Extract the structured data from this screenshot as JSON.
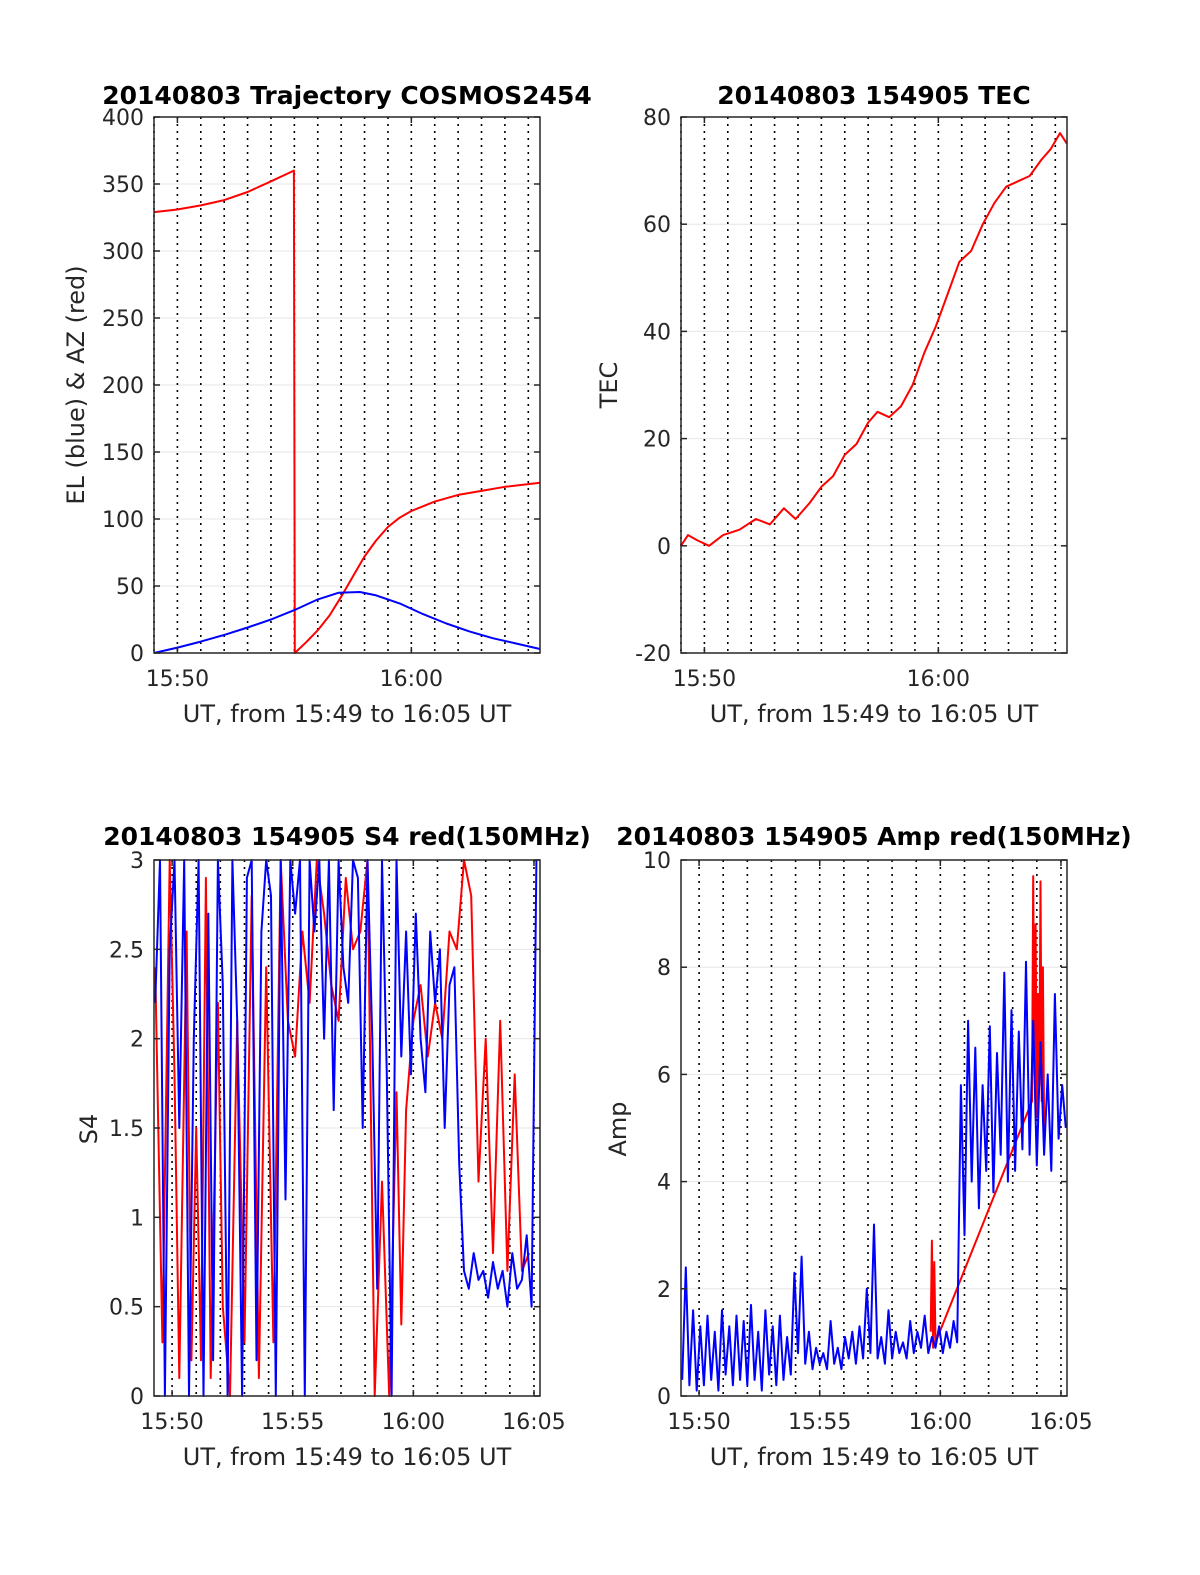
{
  "colors": {
    "el": "#0000ff",
    "az": "#ff0000",
    "tec": "#ff0000",
    "s4_red": "#ff0000",
    "s4_blue": "#0000ff",
    "amp_red": "#ff0000",
    "amp_blue": "#0000ff",
    "grid": "#000000",
    "axis": "#262626"
  },
  "chart_data": [
    {
      "id": "traj",
      "type": "line",
      "title": "20140803 Trajectory COSMOS2454",
      "xlabel": "UT, from 15:49 to 16:05 UT",
      "ylabel": "EL (blue) & AZ (red)",
      "xlim_min": [
        949,
        965.5
      ],
      "ylim": [
        0,
        400
      ],
      "yticks": [
        0,
        50,
        100,
        150,
        200,
        250,
        300,
        350,
        400
      ],
      "ytick_labels": [
        "0",
        "50",
        "100",
        "150",
        "200",
        "250",
        "300",
        "350",
        "400"
      ],
      "xticks_min": [
        950,
        960
      ],
      "xtick_labels": [
        "15:50",
        "16:00"
      ],
      "vgrid_min": [
        949,
        950,
        951,
        952,
        953,
        954,
        955,
        956,
        957,
        958,
        959,
        960,
        961,
        962,
        963,
        964,
        965
      ],
      "hgrid": true,
      "series": [
        {
          "name": "AZ",
          "color": "#ff0000",
          "x_min": [
            949,
            950,
            951,
            952,
            953,
            954,
            954.98,
            955.02,
            955.5,
            956,
            956.5,
            957,
            957.5,
            958,
            958.5,
            959,
            959.5,
            960,
            961,
            962,
            963,
            964,
            965.5
          ],
          "values": [
            329,
            331,
            334,
            338,
            344,
            352,
            360,
            0,
            8,
            17,
            28,
            42,
            57,
            72,
            84,
            94,
            101,
            106,
            113,
            118,
            121,
            124,
            127
          ]
        },
        {
          "name": "EL",
          "color": "#0000ff",
          "x_min": [
            949,
            950,
            951,
            952,
            953,
            954,
            955,
            956,
            956.9,
            957.8,
            958.5,
            959.5,
            960.5,
            961.5,
            962.5,
            963.5,
            964.5,
            965.5
          ],
          "values": [
            0,
            4,
            8.5,
            13.5,
            19,
            25,
            32,
            40,
            45,
            45.5,
            43,
            37,
            29,
            22,
            16,
            11,
            7,
            3
          ]
        }
      ]
    },
    {
      "id": "tec",
      "type": "line",
      "title": "20140803 154905 TEC",
      "xlabel": "UT, from 15:49 to 16:05 UT",
      "ylabel": "TEC",
      "xlim_min": [
        949,
        965.5
      ],
      "ylim": [
        -20,
        80
      ],
      "yticks": [
        -20,
        0,
        20,
        40,
        60,
        80
      ],
      "ytick_labels": [
        "-20",
        "0",
        "20",
        "40",
        "60",
        "80"
      ],
      "xticks_min": [
        950,
        960
      ],
      "xtick_labels": [
        "15:50",
        "16:00"
      ],
      "vgrid_min": [
        949,
        950,
        951,
        952,
        953,
        954,
        955,
        956,
        957,
        958,
        959,
        960,
        961,
        962,
        963,
        964,
        965
      ],
      "hgrid": true,
      "series": [
        {
          "name": "TEC",
          "color": "#ff0000",
          "x_min": [
            949,
            949.3,
            949.7,
            950.2,
            950.8,
            951.5,
            952.2,
            952.8,
            953.4,
            953.9,
            954.5,
            955.0,
            955.5,
            956.0,
            956.5,
            957.0,
            957.4,
            957.9,
            958.4,
            958.9,
            959.4,
            959.9,
            960.4,
            960.9,
            961.4,
            961.9,
            962.4,
            962.9,
            963.4,
            963.9,
            964.4,
            964.8,
            965.2,
            965.5
          ],
          "values": [
            0,
            2,
            1,
            0,
            2,
            3,
            5,
            4,
            7,
            5,
            8,
            11,
            13,
            17,
            19,
            23,
            25,
            24,
            26,
            30,
            36,
            41,
            47,
            53,
            55,
            60,
            64,
            67,
            68,
            69,
            72,
            74,
            77,
            75
          ]
        }
      ]
    },
    {
      "id": "s4",
      "type": "line",
      "title": "20140803 154905 S4 red(150MHz)",
      "xlabel": "UT, from 15:49 to 16:05 UT",
      "ylabel": "S4",
      "xlim_min": [
        949.25,
        965.25
      ],
      "ylim": [
        0,
        3
      ],
      "yticks": [
        0,
        0.5,
        1,
        1.5,
        2,
        2.5,
        3
      ],
      "ytick_labels": [
        "0",
        "0.5",
        "1",
        "1.5",
        "2",
        "2.5",
        "3"
      ],
      "xticks_min": [
        950,
        955,
        960,
        965
      ],
      "xtick_labels": [
        "15:50",
        "15:55",
        "16:00",
        "16:05"
      ],
      "vgrid_min": [
        950,
        951,
        952,
        953,
        954,
        955,
        956,
        957,
        958,
        959,
        960,
        961,
        962,
        963,
        964,
        965
      ],
      "hgrid": true,
      "series": [
        {
          "name": "S4 red",
          "color": "#ff0000",
          "x_min": [
            949.3,
            949.6,
            949.9,
            950.1,
            950.3,
            950.6,
            950.8,
            951.0,
            951.2,
            951.4,
            951.6,
            951.9,
            952.1,
            952.4,
            952.7,
            953.0,
            953.3,
            953.6,
            953.9,
            954.2,
            954.5,
            954.8,
            955.1,
            955.4,
            955.7,
            956.0,
            956.3,
            956.6,
            956.9,
            957.2,
            957.5,
            957.8,
            958.1,
            958.4,
            958.7,
            959.0,
            959.3,
            959.5,
            959.7,
            960.0,
            960.3,
            960.6,
            960.9,
            961.2,
            961.5,
            961.8,
            962.1,
            962.4,
            962.7,
            963.0,
            963.3,
            963.6,
            963.9,
            964.2,
            964.5,
            964.8
          ],
          "values": [
            2.4,
            0.3,
            3.0,
            1.8,
            0.1,
            2.6,
            0.2,
            1.5,
            0.2,
            2.9,
            0.1,
            2.2,
            0.5,
            0.0,
            2.1,
            0.3,
            2.8,
            0.1,
            2.4,
            0.3,
            3.0,
            2.1,
            1.9,
            2.6,
            2.2,
            3.0,
            2.7,
            2.3,
            2.1,
            2.9,
            2.5,
            2.6,
            3.0,
            0.0,
            1.2,
            0.0,
            1.7,
            0.4,
            1.6,
            2.1,
            2.3,
            1.9,
            2.2,
            2.0,
            2.6,
            2.5,
            3.0,
            2.8,
            1.2,
            2.0,
            0.8,
            2.1,
            0.7,
            1.8,
            0.7,
            0.8
          ]
        },
        {
          "name": "S4 blue",
          "color": "#0000ff",
          "x_min": [
            949.3,
            949.5,
            949.7,
            949.9,
            950.1,
            950.3,
            950.5,
            950.7,
            950.9,
            951.1,
            951.3,
            951.5,
            951.7,
            951.9,
            952.1,
            952.3,
            952.5,
            952.7,
            952.9,
            953.1,
            953.3,
            953.5,
            953.7,
            953.9,
            954.1,
            954.3,
            954.5,
            954.7,
            954.9,
            955.1,
            955.3,
            955.5,
            955.7,
            955.9,
            956.1,
            956.3,
            956.5,
            956.7,
            956.9,
            957.1,
            957.3,
            957.5,
            957.7,
            957.9,
            958.1,
            958.3,
            958.5,
            958.7,
            958.9,
            959.1,
            959.3,
            959.5,
            959.7,
            959.9,
            960.1,
            960.3,
            960.5,
            960.7,
            960.9,
            961.1,
            961.3,
            961.5,
            961.7,
            961.9,
            962.1,
            962.3,
            962.5,
            962.7,
            962.9,
            963.1,
            963.3,
            963.5,
            963.7,
            963.9,
            964.1,
            964.3,
            964.5,
            964.7,
            964.9,
            965.1
          ],
          "values": [
            2.2,
            3.0,
            0.0,
            2.5,
            3.0,
            1.5,
            3.0,
            0.0,
            2.0,
            3.0,
            0.0,
            2.7,
            0.2,
            3.0,
            2.3,
            0.0,
            3.0,
            2.1,
            0.0,
            2.9,
            3.0,
            0.2,
            2.6,
            3.0,
            2.8,
            0.0,
            3.0,
            1.1,
            3.0,
            2.7,
            3.0,
            0.0,
            3.0,
            2.6,
            3.0,
            2.0,
            3.0,
            1.6,
            3.0,
            2.4,
            2.2,
            3.0,
            2.9,
            1.5,
            3.0,
            2.0,
            0.6,
            3.0,
            1.8,
            0.0,
            3.0,
            1.9,
            2.6,
            1.8,
            2.7,
            2.0,
            1.7,
            2.6,
            2.2,
            2.5,
            1.5,
            2.3,
            2.4,
            1.3,
            0.7,
            0.6,
            0.8,
            0.65,
            0.7,
            0.55,
            0.75,
            0.6,
            0.7,
            0.5,
            0.8,
            0.6,
            0.65,
            0.9,
            0.5,
            3.0
          ]
        }
      ]
    },
    {
      "id": "amp",
      "type": "line",
      "title": "20140803 154905 Amp red(150MHz)",
      "xlabel": "UT, from 15:49 to 16:05 UT",
      "ylabel": "Amp",
      "xlim_min": [
        949.25,
        965.25
      ],
      "ylim": [
        0,
        10
      ],
      "yticks": [
        0,
        2,
        4,
        6,
        8,
        10
      ],
      "ytick_labels": [
        "0",
        "2",
        "4",
        "6",
        "8",
        "10"
      ],
      "xticks_min": [
        950,
        955,
        960,
        965
      ],
      "xtick_labels": [
        "15:50",
        "15:55",
        "16:00",
        "16:05"
      ],
      "vgrid_min": [
        950,
        951,
        952,
        953,
        954,
        955,
        956,
        957,
        958,
        959,
        960,
        961,
        962,
        963,
        964,
        965
      ],
      "hgrid": true,
      "series": [
        {
          "name": "Amp red",
          "color": "#ff0000",
          "x_min": [
            959.6,
            959.65,
            959.7,
            959.75,
            959.8,
            963.8,
            963.85,
            963.9,
            963.95,
            964.0,
            964.05,
            964.1,
            964.15,
            964.2,
            964.25,
            964.3
          ],
          "values": [
            1.2,
            2.9,
            0.9,
            2.5,
            1.0,
            5.5,
            9.7,
            6.0,
            8.8,
            5.2,
            7.5,
            5.8,
            9.6,
            5.5,
            8.0,
            5.0
          ]
        },
        {
          "name": "Amp blue",
          "color": "#0000ff",
          "x_min": [
            949.3,
            949.45,
            949.6,
            949.75,
            949.9,
            950.05,
            950.2,
            950.35,
            950.5,
            950.65,
            950.8,
            950.95,
            951.1,
            951.25,
            951.4,
            951.55,
            951.7,
            951.85,
            952.0,
            952.15,
            952.3,
            952.45,
            952.6,
            952.75,
            952.9,
            953.05,
            953.2,
            953.35,
            953.5,
            953.65,
            953.8,
            953.95,
            954.1,
            954.25,
            954.4,
            954.55,
            954.7,
            954.85,
            955.0,
            955.15,
            955.3,
            955.45,
            955.6,
            955.75,
            955.9,
            956.05,
            956.2,
            956.35,
            956.5,
            956.65,
            956.8,
            956.95,
            957.1,
            957.25,
            957.4,
            957.55,
            957.7,
            957.85,
            958.0,
            958.15,
            958.3,
            958.45,
            958.6,
            958.75,
            958.9,
            959.05,
            959.2,
            959.35,
            959.5,
            959.65,
            959.8,
            959.95,
            960.1,
            960.25,
            960.4,
            960.55,
            960.7,
            960.85,
            961.0,
            961.15,
            961.3,
            961.45,
            961.6,
            961.75,
            961.9,
            962.05,
            962.2,
            962.35,
            962.5,
            962.65,
            962.8,
            962.95,
            963.1,
            963.25,
            963.4,
            963.55,
            963.7,
            963.85,
            964.0,
            964.15,
            964.3,
            964.45,
            964.6,
            964.75,
            964.9,
            965.05,
            965.2
          ],
          "values": [
            0.3,
            2.4,
            0.2,
            1.6,
            0.1,
            1.3,
            0.2,
            1.5,
            0.3,
            1.2,
            0.1,
            1.6,
            0.4,
            1.3,
            0.2,
            1.5,
            0.3,
            1.4,
            0.2,
            1.7,
            0.3,
            1.2,
            0.1,
            1.6,
            0.4,
            1.3,
            0.2,
            1.5,
            0.3,
            1.1,
            0.4,
            2.3,
            0.8,
            2.6,
            0.6,
            1.2,
            0.5,
            0.9,
            0.6,
            0.8,
            0.5,
            1.4,
            0.6,
            0.9,
            0.5,
            1.1,
            0.7,
            1.2,
            0.6,
            1.3,
            0.7,
            2.0,
            0.8,
            3.2,
            0.7,
            1.1,
            0.6,
            1.6,
            0.7,
            1.2,
            0.8,
            1.0,
            0.7,
            1.4,
            0.8,
            1.2,
            0.9,
            1.5,
            0.8,
            1.1,
            0.9,
            1.3,
            0.8,
            1.2,
            0.9,
            1.4,
            1.0,
            5.8,
            3.0,
            7.0,
            4.0,
            6.5,
            3.5,
            5.8,
            4.2,
            6.9,
            3.8,
            6.4,
            4.5,
            7.9,
            4.0,
            7.2,
            4.2,
            6.8,
            4.6,
            8.1,
            4.5,
            7.0,
            4.3,
            6.6,
            4.5,
            6.0,
            4.2,
            7.5,
            4.8,
            5.8,
            5.0
          ]
        }
      ]
    }
  ]
}
